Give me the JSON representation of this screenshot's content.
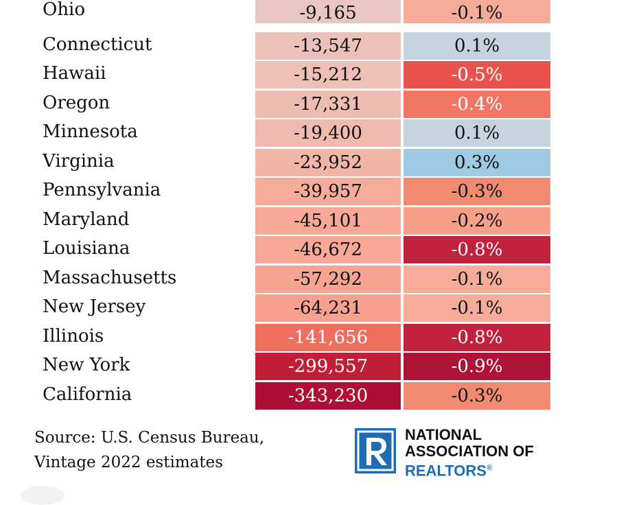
{
  "chart_data": {
    "type": "table",
    "rows": [
      {
        "state": "Ohio",
        "change": "-9,165",
        "pct": "-0.1%",
        "change_color": "#e8c7c3",
        "pct_color": "#f7ab99"
      },
      {
        "state": "Connecticut",
        "change": "-13,547",
        "pct": "0.1%",
        "change_color": "#ecc1b9",
        "pct_color": "#c5d3df"
      },
      {
        "state": "Hawaii",
        "change": "-15,212",
        "pct": "-0.5%",
        "change_color": "#edbfb5",
        "pct_color": "#e9534e"
      },
      {
        "state": "Oregon",
        "change": "-17,331",
        "pct": "-0.4%",
        "change_color": "#eebdb2",
        "pct_color": "#f07563"
      },
      {
        "state": "Minnesota",
        "change": "-19,400",
        "pct": "0.1%",
        "change_color": "#efbbb0",
        "pct_color": "#c5d3df"
      },
      {
        "state": "Virginia",
        "change": "-23,952",
        "pct": "0.3%",
        "change_color": "#f2b6a8",
        "pct_color": "#9fc8e2"
      },
      {
        "state": "Pennsylvania",
        "change": "-39,957",
        "pct": "-0.3%",
        "change_color": "#f6ab9b",
        "pct_color": "#f28a72"
      },
      {
        "state": "Maryland",
        "change": "-45,101",
        "pct": "-0.2%",
        "change_color": "#f7a897",
        "pct_color": "#f6a08a"
      },
      {
        "state": "Louisiana",
        "change": "-46,672",
        "pct": "-0.8%",
        "change_color": "#f7a897",
        "pct_color": "#c0223d"
      },
      {
        "state": "Massachusetts",
        "change": "-57,292",
        "pct": "-0.1%",
        "change_color": "#f7a492",
        "pct_color": "#f7ab99"
      },
      {
        "state": "New Jersey",
        "change": "-64,231",
        "pct": "-0.1%",
        "change_color": "#f7a18e",
        "pct_color": "#f7ab99"
      },
      {
        "state": "Illinois",
        "change": "-141,656",
        "pct": "-0.8%",
        "change_color": "#ef6f5f",
        "pct_color": "#c0223d"
      },
      {
        "state": "New York",
        "change": "-299,557",
        "pct": "-0.9%",
        "change_color": "#c11e38",
        "pct_color": "#ac1337"
      },
      {
        "state": "California",
        "change": "-343,230",
        "pct": "-0.3%",
        "change_color": "#ad0f37",
        "pct_color": "#f28a72"
      }
    ]
  },
  "footer": {
    "source_text": "Source: U.S. Census Bureau, Vintage 2022 estimates"
  },
  "logo": {
    "line1": "NATIONAL",
    "line2": "ASSOCIATION OF",
    "line3": "REALTORS",
    "mark": "®",
    "colors": {
      "blue": "#1d6cb5",
      "text": "#111111"
    }
  }
}
